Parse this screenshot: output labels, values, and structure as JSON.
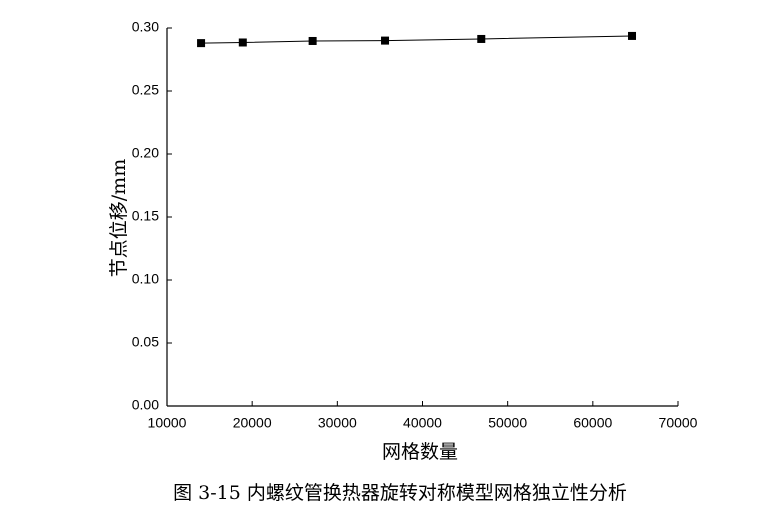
{
  "chart_data": {
    "type": "line",
    "x_label": "网格数量",
    "y_label": "节点位移/mm",
    "caption": "图 3-15  内螺纹管换热器旋转对称模型网格独立性分析",
    "x": [
      14000,
      18900,
      27100,
      35600,
      46900,
      64600
    ],
    "series": [
      {
        "color": "#000000",
        "values": [
          0.288,
          0.2885,
          0.2897,
          0.29,
          0.2913,
          0.2937
        ]
      }
    ],
    "xlim": [
      10000,
      70000
    ],
    "xticks": [
      10000,
      20000,
      30000,
      40000,
      50000,
      60000,
      70000
    ],
    "ylim": [
      0,
      0.3
    ],
    "yticks": [
      {
        "value": 0,
        "label": "0.00"
      },
      0.05,
      {
        "value": 0.1,
        "label": "0.10"
      },
      0.15,
      {
        "value": 0.2,
        "label": "0.20"
      },
      0.25,
      {
        "value": 0.3,
        "label": "0.30"
      }
    ],
    "grid": false
  }
}
